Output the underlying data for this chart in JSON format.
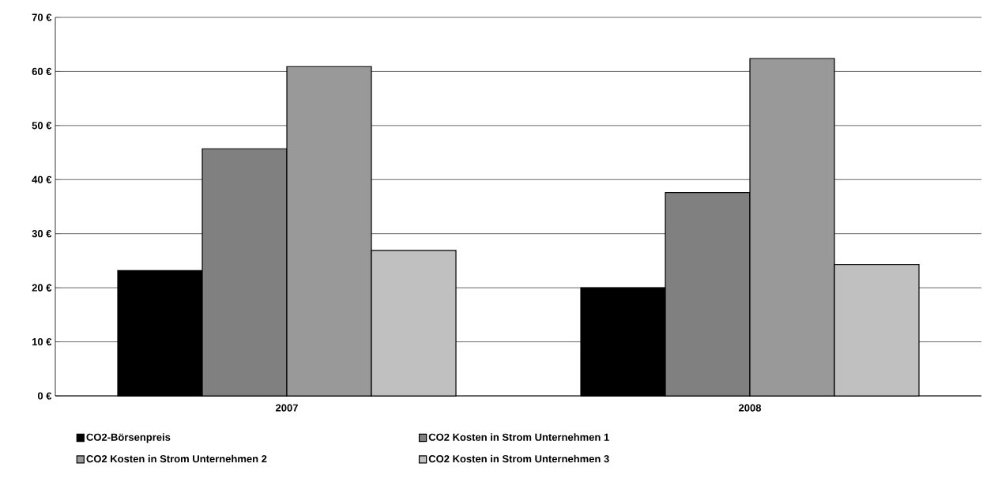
{
  "chart_data": {
    "type": "bar",
    "categories": [
      "2007",
      "2008"
    ],
    "series": [
      {
        "name": "CO2-Börsenpreis",
        "color": "#000000",
        "values": [
          23.2,
          20.0
        ]
      },
      {
        "name": "CO2 Kosten in Strom Unternehmen 1",
        "color": "#808080",
        "values": [
          45.7,
          37.6
        ]
      },
      {
        "name": "CO2 Kosten in Strom Unternehmen 2",
        "color": "#999999",
        "values": [
          60.9,
          62.4
        ]
      },
      {
        "name": "CO2 Kosten in Strom Unternehmen 3",
        "color": "#c0c0c0",
        "values": [
          26.9,
          24.3
        ]
      }
    ],
    "ylim": [
      0,
      70
    ],
    "yticks": [
      {
        "value": 0,
        "label": "0 €"
      },
      {
        "value": 10,
        "label": "10 €"
      },
      {
        "value": 20,
        "label": "20 €"
      },
      {
        "value": 30,
        "label": "30 €"
      },
      {
        "value": 40,
        "label": "40 €"
      },
      {
        "value": 50,
        "label": "50 €"
      },
      {
        "value": 60,
        "label": "60 €"
      },
      {
        "value": 70,
        "label": "70 €"
      }
    ],
    "grid": "y",
    "legend": "bottom"
  }
}
